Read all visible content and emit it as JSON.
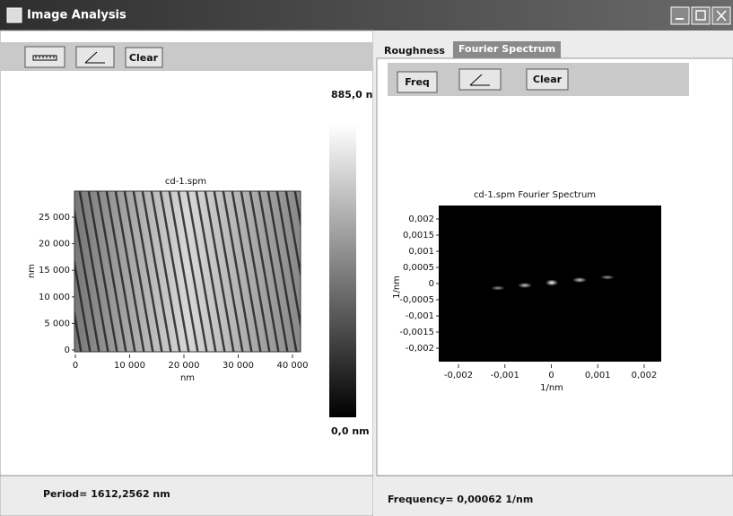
{
  "window": {
    "title": "Image Analysis"
  },
  "left_panel": {
    "toolbar": {
      "clear": "Clear"
    },
    "colorbar": {
      "max": "885,0 n",
      "min": "0,0 nm"
    },
    "plot": {
      "title": "cd-1.spm",
      "y_label": "nm",
      "x_label": "nm",
      "y_ticks": [
        "25 000",
        "20 000",
        "15 000",
        "10 000",
        "5 000",
        "0"
      ],
      "x_ticks": [
        "0",
        "10 000",
        "20 000",
        "30 000",
        "40 000"
      ]
    },
    "status": "Period= 1612,2562 nm"
  },
  "right_panel": {
    "tabs": [
      "Roughness",
      "Fourier Spectrum"
    ],
    "toolbar": {
      "freq": "Freq",
      "clear": "Clear"
    },
    "plot": {
      "title": "cd-1.spm Fourier Spectrum",
      "y_label": "1/nm",
      "x_label": "1/nm",
      "y_ticks": [
        "0,002",
        "0,0015",
        "0,001",
        "0,0005",
        "0",
        "-0,0005",
        "-0,001",
        "-0,0015",
        "-0,002"
      ],
      "x_ticks": [
        "-0,002",
        "-0,001",
        "0",
        "0,001",
        "0,002"
      ]
    },
    "status": "Frequency= 0,00062 1/nm"
  }
}
